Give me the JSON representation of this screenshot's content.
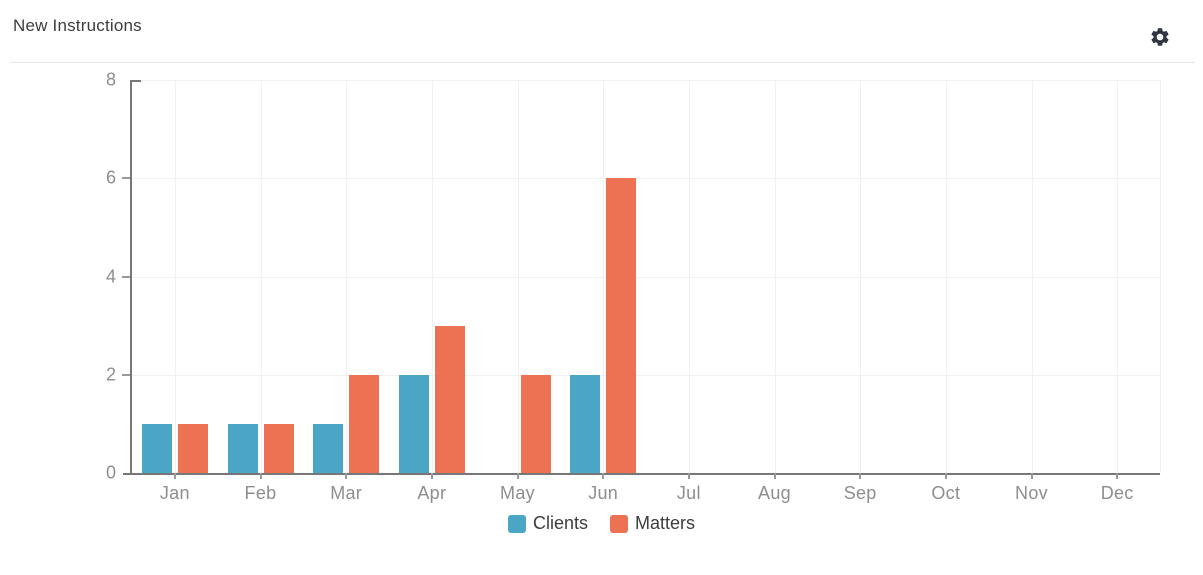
{
  "header": {
    "title": "New Instructions",
    "settings_icon": "gear-icon"
  },
  "chart_data": {
    "type": "bar",
    "title": "New Instructions",
    "categories": [
      "Jan",
      "Feb",
      "Mar",
      "Apr",
      "May",
      "Jun",
      "Jul",
      "Aug",
      "Sep",
      "Oct",
      "Nov",
      "Dec"
    ],
    "series": [
      {
        "name": "Clients",
        "color": "#4BA5C4",
        "values": [
          1,
          1,
          1,
          2,
          0,
          2,
          0,
          0,
          0,
          0,
          0,
          0
        ]
      },
      {
        "name": "Matters",
        "color": "#ED7153",
        "values": [
          1,
          1,
          2,
          3,
          2,
          6,
          0,
          0,
          0,
          0,
          0,
          0
        ]
      }
    ],
    "xlabel": "",
    "ylabel": "",
    "ylim": [
      0,
      8
    ],
    "yticks": [
      0,
      2,
      4,
      6,
      8
    ],
    "grid": true,
    "legend_position": "bottom"
  },
  "colors": {
    "axis_line": "#777777",
    "grid_line": "#f1f1f1",
    "tick_mark": "#999999",
    "tick_label": "#8e8e8e",
    "legend_label": "#3d3d3d",
    "title_text": "#3d3d3d",
    "gear_icon": "#2f3640",
    "divider": "#e7e7e7",
    "background": "#ffffff"
  }
}
